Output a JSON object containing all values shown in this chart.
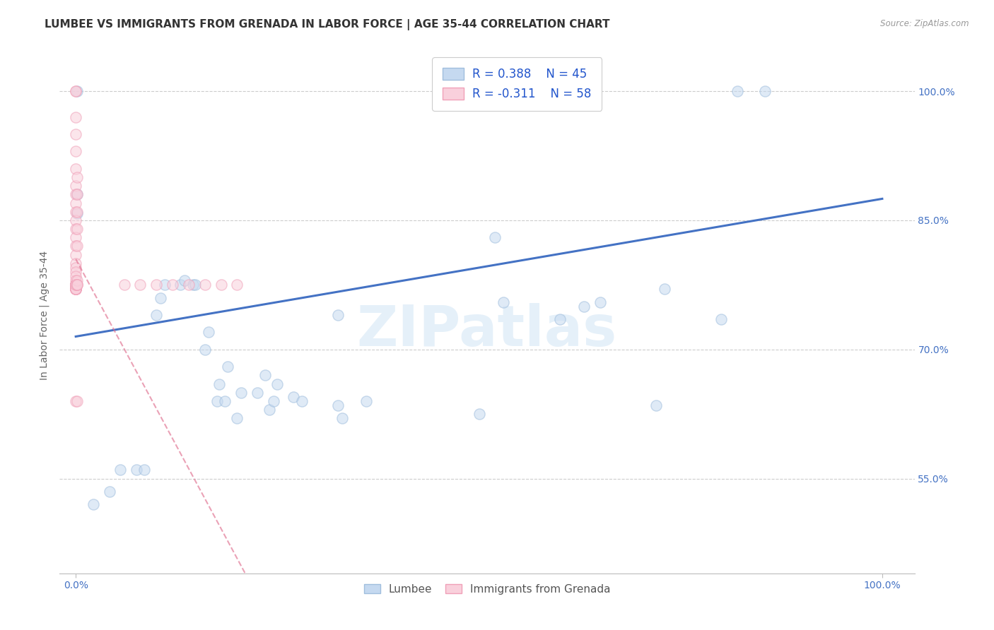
{
  "title": "LUMBEE VS IMMIGRANTS FROM GRENADA IN LABOR FORCE | AGE 35-44 CORRELATION CHART",
  "source": "Source: ZipAtlas.com",
  "ylabel": "In Labor Force | Age 35-44",
  "watermark": "ZIPatlas",
  "legend_r1": "R = 0.388",
  "legend_n1": "N = 45",
  "legend_r2": "R = -0.311",
  "legend_n2": "N = 58",
  "xlim": [
    -0.02,
    1.04
  ],
  "ylim": [
    0.44,
    1.04
  ],
  "xtick_positions": [
    0.0,
    1.0
  ],
  "xtick_labels": [
    "0.0%",
    "100.0%"
  ],
  "ytick_positions": [
    0.55,
    0.7,
    0.85,
    1.0
  ],
  "ytick_labels": [
    "55.0%",
    "70.0%",
    "85.0%",
    "100.0%"
  ],
  "blue_fill_color": "#c5d9f0",
  "blue_edge_color": "#a0bedd",
  "blue_line_color": "#4472c4",
  "pink_fill_color": "#f9d0dc",
  "pink_edge_color": "#f0a0b8",
  "pink_line_color": "#e07090",
  "lumbee_x": [
    0.002,
    0.002,
    0.002,
    0.022,
    0.042,
    0.055,
    0.075,
    0.085,
    0.1,
    0.105,
    0.11,
    0.13,
    0.135,
    0.145,
    0.148,
    0.16,
    0.165,
    0.175,
    0.178,
    0.185,
    0.188,
    0.2,
    0.205,
    0.225,
    0.235,
    0.24,
    0.245,
    0.25,
    0.27,
    0.28,
    0.325,
    0.33,
    0.325,
    0.36,
    0.5,
    0.52,
    0.53,
    0.6,
    0.63,
    0.65,
    0.72,
    0.73,
    0.8,
    0.82,
    0.855
  ],
  "lumbee_y": [
    1.0,
    0.858,
    0.88,
    0.52,
    0.535,
    0.56,
    0.56,
    0.56,
    0.74,
    0.76,
    0.775,
    0.775,
    0.78,
    0.775,
    0.775,
    0.7,
    0.72,
    0.64,
    0.66,
    0.64,
    0.68,
    0.62,
    0.65,
    0.65,
    0.67,
    0.63,
    0.64,
    0.66,
    0.645,
    0.64,
    0.74,
    0.62,
    0.635,
    0.64,
    0.625,
    0.83,
    0.755,
    0.735,
    0.75,
    0.755,
    0.635,
    0.77,
    0.735,
    1.0,
    1.0
  ],
  "grenada_x": [
    0.0,
    0.0,
    0.0,
    0.0,
    0.0,
    0.0,
    0.0,
    0.0,
    0.0,
    0.0,
    0.0,
    0.0,
    0.0,
    0.0,
    0.0,
    0.0,
    0.0,
    0.0,
    0.0,
    0.0,
    0.0,
    0.0,
    0.0,
    0.0,
    0.0,
    0.0,
    0.0,
    0.0,
    0.0,
    0.0,
    0.0,
    0.0,
    0.0,
    0.0,
    0.0,
    0.0,
    0.0,
    0.0,
    0.0,
    0.0,
    0.06,
    0.08,
    0.1,
    0.12,
    0.14,
    0.16,
    0.18,
    0.2,
    0.002,
    0.002,
    0.002,
    0.002,
    0.002,
    0.002,
    0.002,
    0.002,
    0.002,
    0.002
  ],
  "grenada_y": [
    1.0,
    1.0,
    0.97,
    0.95,
    0.93,
    0.91,
    0.89,
    0.88,
    0.87,
    0.86,
    0.85,
    0.84,
    0.83,
    0.82,
    0.81,
    0.8,
    0.795,
    0.79,
    0.785,
    0.78,
    0.775,
    0.77,
    0.775,
    0.77,
    0.775,
    0.77,
    0.775,
    0.77,
    0.775,
    0.77,
    0.775,
    0.77,
    0.775,
    0.77,
    0.775,
    0.77,
    0.775,
    0.77,
    0.64,
    0.775,
    0.775,
    0.775,
    0.775,
    0.775,
    0.775,
    0.775,
    0.775,
    0.775,
    0.64,
    0.775,
    0.78,
    0.82,
    0.84,
    0.86,
    0.88,
    0.9,
    0.775,
    0.775
  ],
  "blue_trend_x": [
    0.0,
    1.0
  ],
  "blue_trend_y": [
    0.715,
    0.875
  ],
  "pink_trend_x": [
    0.0,
    0.21
  ],
  "pink_trend_y": [
    0.805,
    0.44
  ],
  "background_color": "#ffffff",
  "grid_color": "#cccccc",
  "tick_color": "#4472c4",
  "title_fontsize": 11,
  "axis_label_fontsize": 10,
  "tick_fontsize": 10,
  "legend_fontsize": 12,
  "scatter_size": 120,
  "scatter_alpha": 0.55
}
